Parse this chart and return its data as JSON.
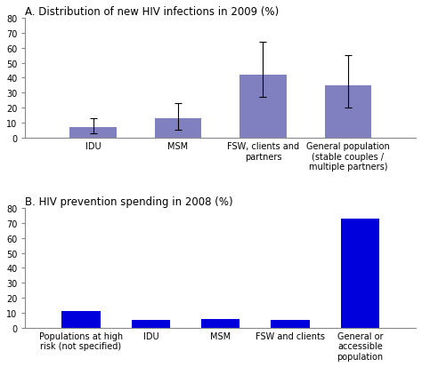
{
  "chart_a": {
    "title": "A. Distribution of new HIV infections in 2009 (%)",
    "categories": [
      "IDU",
      "MSM",
      "FSW, clients and\npartners",
      "General population\n(stable couples /\nmultiple partners)"
    ],
    "values": [
      7,
      13,
      42,
      35
    ],
    "errors_low": [
      4,
      8,
      15,
      15
    ],
    "errors_high": [
      6,
      10,
      22,
      20
    ],
    "bar_color": "#8080c0",
    "ylim": [
      0,
      80
    ],
    "yticks": [
      0,
      10,
      20,
      30,
      40,
      50,
      60,
      70,
      80
    ]
  },
  "chart_b": {
    "title": "B. HIV prevention spending in 2008 (%)",
    "categories": [
      "Populations at high\nrisk (not specified)",
      "IDU",
      "MSM",
      "FSW and clients",
      "General or\naccessible\npopulation"
    ],
    "values": [
      11,
      5,
      6,
      5,
      73
    ],
    "bar_color": "#0000dd",
    "ylim": [
      0,
      80
    ],
    "yticks": [
      0,
      10,
      20,
      30,
      40,
      50,
      60,
      70,
      80
    ]
  },
  "background_color": "#ffffff",
  "title_fontsize": 8.5,
  "tick_fontsize": 7,
  "label_fontsize": 7
}
